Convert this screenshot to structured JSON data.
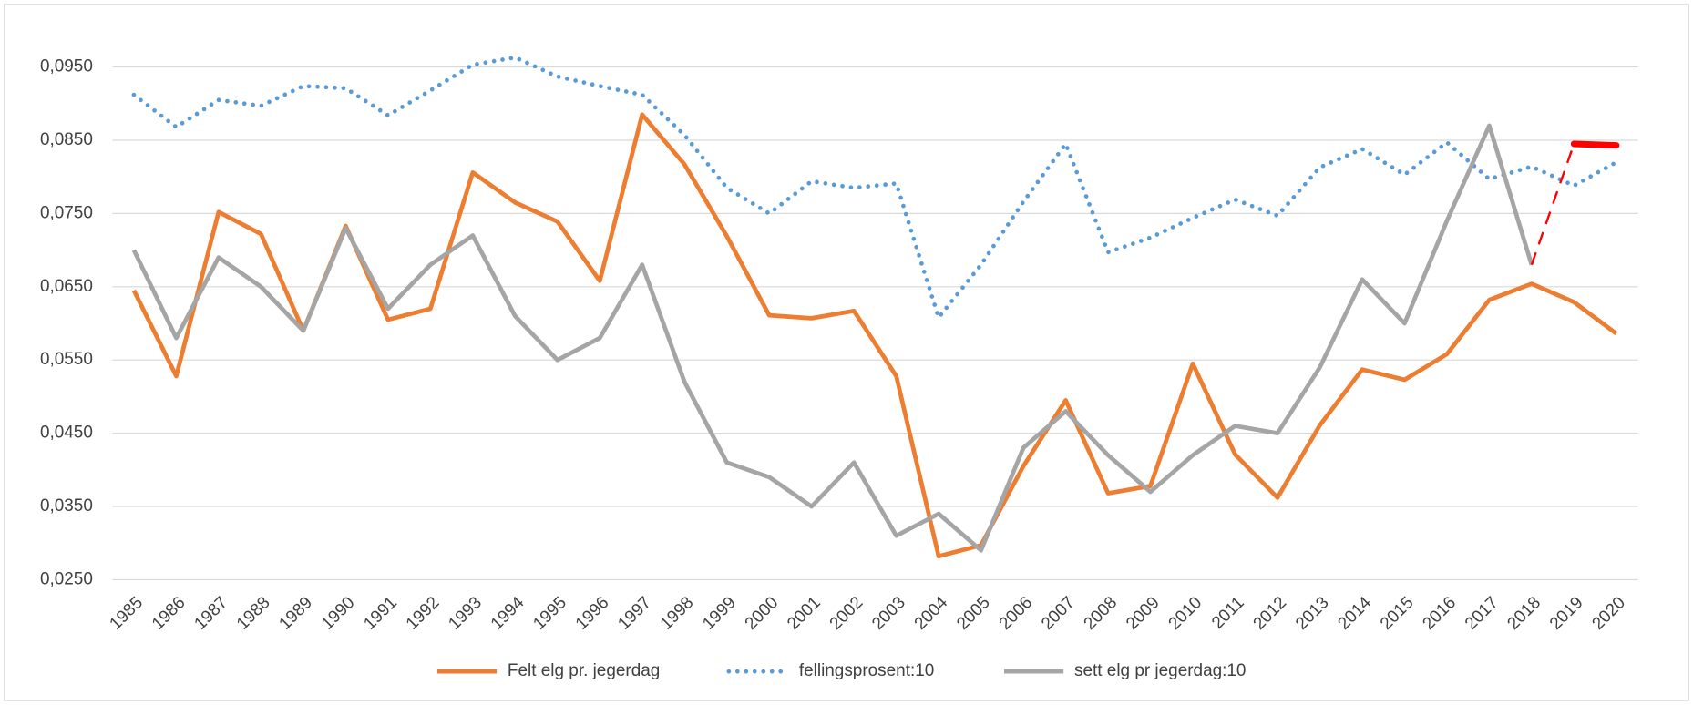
{
  "chart_data": {
    "type": "line",
    "categories": [
      "1985",
      "1986",
      "1987",
      "1988",
      "1989",
      "1990",
      "1991",
      "1992",
      "1993",
      "1994",
      "1995",
      "1996",
      "1997",
      "1998",
      "1999",
      "2000",
      "2001",
      "2002",
      "2003",
      "2004",
      "2005",
      "2006",
      "2007",
      "2008",
      "2009",
      "2010",
      "2011",
      "2012",
      "2013",
      "2014",
      "2015",
      "2016",
      "2017",
      "2018",
      "2019",
      "2020"
    ],
    "series": [
      {
        "name": "Felt elg pr. jegerdag",
        "color": "#ed7d31",
        "style": "solid",
        "values": [
          0.0645,
          0.0528,
          0.0752,
          0.0722,
          0.059,
          0.0733,
          0.0605,
          0.062,
          0.0806,
          0.0765,
          0.0739,
          0.0658,
          0.0885,
          0.0817,
          0.0719,
          0.0611,
          0.0607,
          0.0617,
          0.0528,
          0.0282,
          0.0297,
          0.0405,
          0.0495,
          0.0368,
          0.0378,
          0.0545,
          0.0421,
          0.0362,
          0.0461,
          0.0537,
          0.0523,
          0.0558,
          0.0632,
          0.0654,
          0.0629,
          0.0586
        ]
      },
      {
        "name": "fellingsprosent:10",
        "color": "#5b9bd5",
        "style": "dotted",
        "values": [
          0.0912,
          0.0868,
          0.0905,
          0.0897,
          0.0924,
          0.0921,
          0.0884,
          0.0918,
          0.0953,
          0.0963,
          0.0937,
          0.0924,
          0.0912,
          0.0857,
          0.0785,
          0.075,
          0.0794,
          0.0785,
          0.0791,
          0.0608,
          0.068,
          0.0766,
          0.0845,
          0.0697,
          0.0717,
          0.0744,
          0.0769,
          0.0747,
          0.0813,
          0.0838,
          0.0803,
          0.0847,
          0.0797,
          0.0814,
          0.0788,
          0.082
        ]
      },
      {
        "name": "sett elg pr jegerdag:10",
        "color": "#a5a5a5",
        "style": "solid",
        "values": [
          0.07,
          0.058,
          0.069,
          0.065,
          0.059,
          0.073,
          0.062,
          0.068,
          0.072,
          0.061,
          0.055,
          0.058,
          0.068,
          0.052,
          0.041,
          0.039,
          0.035,
          0.041,
          0.031,
          0.034,
          0.029,
          0.043,
          0.048,
          0.042,
          0.037,
          0.042,
          0.046,
          0.045,
          0.054,
          0.066,
          0.06,
          0.074,
          0.087,
          0.068,
          null,
          null
        ]
      }
    ],
    "annotations": [
      {
        "color": "#ff0000",
        "style": "dashed",
        "x": [
          "2018",
          "2019"
        ],
        "values": [
          0.068,
          0.0845
        ]
      },
      {
        "color": "#ff0000",
        "style": "thick",
        "x": [
          "2019",
          "2020"
        ],
        "values": [
          0.0845,
          0.0843
        ]
      }
    ],
    "ylim": [
      0.025,
      0.095
    ],
    "yticks": [
      {
        "value": 0.025,
        "label": "0,0250"
      },
      {
        "value": 0.035,
        "label": "0,0350"
      },
      {
        "value": 0.045,
        "label": "0,0450"
      },
      {
        "value": 0.055,
        "label": "0,0550"
      },
      {
        "value": 0.065,
        "label": "0,0650"
      },
      {
        "value": 0.075,
        "label": "0,0750"
      },
      {
        "value": 0.085,
        "label": "0,0850"
      },
      {
        "value": 0.095,
        "label": "0,0950"
      }
    ],
    "grid": true,
    "legend": "bottom"
  }
}
